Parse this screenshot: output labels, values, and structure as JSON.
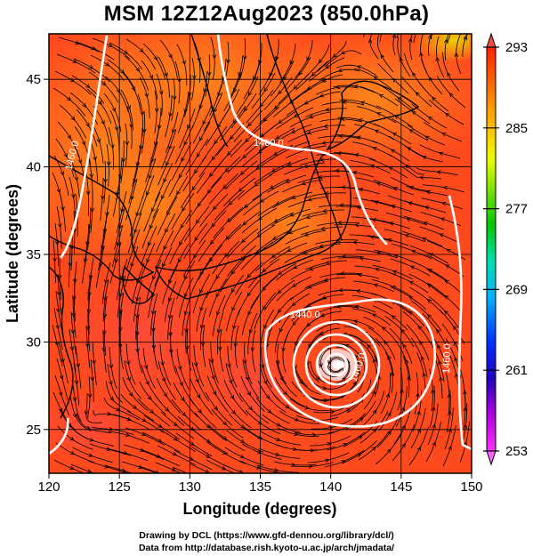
{
  "title": "MSM 12Z12Aug2023 (850.0hPa)",
  "credits": {
    "line1": "Drawing by DCL (https://www.gfd-dennou.org/library/dcl/)",
    "line2": "Data from http://database.rish.kyoto-u.ac.jp/arch/jmadata/"
  },
  "map": {
    "xlabel": "Longitude (degrees)",
    "ylabel": "Latitude  (degrees)",
    "xlim": [
      120,
      150
    ],
    "ylim": [
      22.5,
      47.6
    ],
    "xticks": [
      120,
      125,
      130,
      135,
      140,
      145,
      150
    ],
    "yticks": [
      25,
      30,
      35,
      40,
      45
    ],
    "contour_labels": [
      "1460.0",
      "1460.0",
      "1440.0",
      "1460.0",
      "1460.0"
    ],
    "typhoon_center": {
      "lon": 140.5,
      "lat": 29.2
    }
  },
  "colorbar": {
    "min": 253,
    "max": 293,
    "tick_labels": [
      "293",
      "285",
      "277",
      "269",
      "261",
      "253"
    ],
    "colors": [
      "#ff30ff",
      "#b000e0",
      "#0000c8",
      "#0050ff",
      "#00c8ff",
      "#00e0a0",
      "#00c800",
      "#80e000",
      "#e0ff00",
      "#ffd000",
      "#ff8000",
      "#ff2000"
    ]
  }
}
